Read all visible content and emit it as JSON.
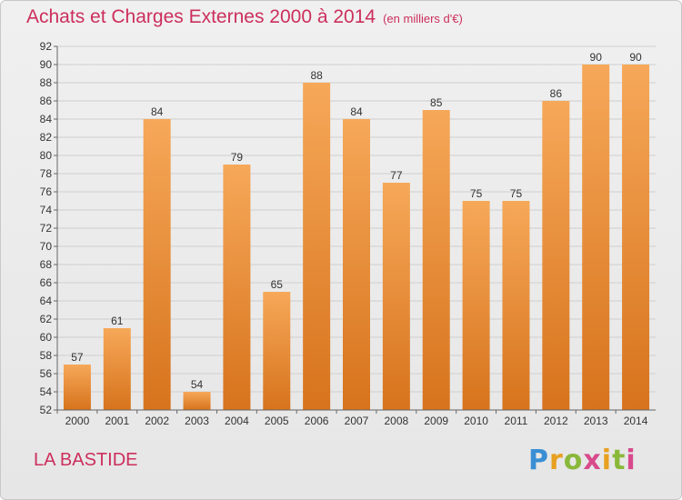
{
  "title": "Achats et Charges Externes 2000 à 2014",
  "subtitle": "(en milliers d'€)",
  "commune": "LA BASTIDE",
  "logo": {
    "parts": [
      "P",
      "r",
      "o",
      "x",
      "i",
      "t",
      "i"
    ]
  },
  "colors": {
    "bar_top": "#f6a859",
    "bar_bottom": "#d7731c",
    "title": "#cc2f5c"
  },
  "chart_data": {
    "type": "bar",
    "categories": [
      "2000",
      "2001",
      "2002",
      "2003",
      "2004",
      "2005",
      "2006",
      "2007",
      "2008",
      "2009",
      "2010",
      "2011",
      "2012",
      "2013",
      "2014"
    ],
    "values": [
      57,
      61,
      84,
      54,
      79,
      65,
      88,
      84,
      77,
      85,
      75,
      75,
      86,
      90,
      90
    ],
    "ylim": [
      52,
      92
    ],
    "yticks": [
      52,
      54,
      56,
      58,
      60,
      62,
      64,
      66,
      68,
      70,
      72,
      74,
      76,
      78,
      80,
      82,
      84,
      86,
      88,
      90,
      92
    ],
    "grid": true,
    "data_labels": true
  }
}
